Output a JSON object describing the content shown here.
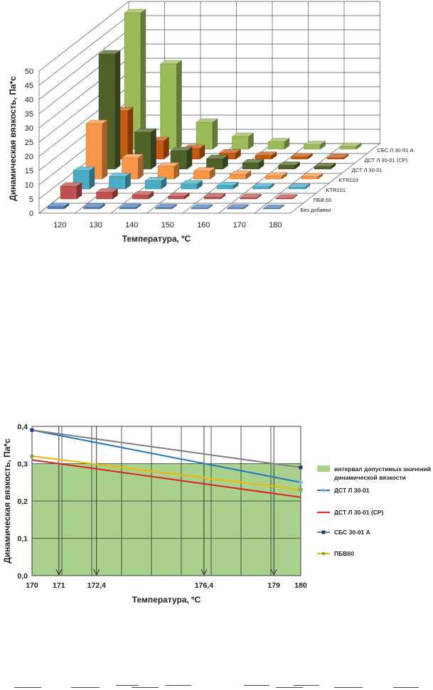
{
  "chart_data": [
    {
      "type": "bar",
      "subtype": "3d-bar",
      "title": "",
      "xlabel": "Температура, ºС",
      "ylabel": "Динамическая вязкость, Па*с",
      "ylim": [
        0,
        50
      ],
      "yticks": [
        "0",
        "5",
        "10",
        "15",
        "20",
        "25",
        "30",
        "35",
        "40",
        "45",
        "50"
      ],
      "categories": [
        "120",
        "130",
        "140",
        "150",
        "160",
        "170",
        "180"
      ],
      "series": [
        {
          "name": "Без добавки",
          "color": "#4f81bd",
          "values": [
            0.8,
            0.6,
            0.5,
            0.4,
            0.3,
            0.3,
            0.2
          ]
        },
        {
          "name": "ПБВ 60",
          "color": "#c0504d",
          "values": [
            4.5,
            2.4,
            1.4,
            0.9,
            0.6,
            0.4,
            0.3
          ]
        },
        {
          "name": "KTR101",
          "color": "#4bacc6",
          "values": [
            6.5,
            4.4,
            2.9,
            1.8,
            1.2,
            0.8,
            0.6
          ]
        },
        {
          "name": "KTR103",
          "color": "#f79646",
          "values": [
            19.5,
            7.5,
            4.5,
            2.8,
            1.7,
            1.1,
            0.8
          ]
        },
        {
          "name": "ДСТ Л 30-01",
          "color": "#4f6228",
          "values": [
            40.5,
            13.0,
            6.5,
            3.7,
            2.2,
            1.3,
            0.9
          ]
        },
        {
          "name": "ДСТ Л 30-01 (СР)",
          "color": "#c55a11",
          "values": [
            17.0,
            6.5,
            3.8,
            2.2,
            1.3,
            0.8,
            0.5
          ]
        },
        {
          "name": "СБС Л 30-01 А",
          "color": "#9bbb59",
          "values": [
            48.0,
            30.0,
            9.5,
            4.5,
            2.6,
            1.6,
            1.0
          ]
        }
      ],
      "legend_placement": "right (as depth labels)"
    },
    {
      "type": "line",
      "title": "",
      "xlabel": "Температура, ºС",
      "ylabel": "Динамическая вязкость, Па*с",
      "xlim": [
        170,
        180
      ],
      "ylim": [
        0,
        0.4
      ],
      "xticks": [
        "170",
        "171",
        "172,4",
        "176,4",
        "179",
        "180"
      ],
      "yticks": [
        "0,0",
        "0,1",
        "0,2",
        "0,3",
        "0,4"
      ],
      "band": {
        "name": "интервал допустимых значений динамической вязкости",
        "from": 0,
        "to": 0.3,
        "color": "#a9d18e"
      },
      "arrows_at": [
        171,
        172.4,
        176.4,
        179
      ],
      "series": [
        {
          "name": "ДСТ Л 30-01",
          "color": "#1f77bf",
          "marker": "diamond",
          "marker_color": "#8ea9db",
          "x": [
            170,
            180
          ],
          "y": [
            0.39,
            0.25
          ]
        },
        {
          "name": "ДСТ Л 30-01 (СР)",
          "color": "#e02020",
          "marker": "none",
          "x": [
            170,
            180
          ],
          "y": [
            0.31,
            0.21
          ]
        },
        {
          "name": "СБС 30-01 А",
          "color": "#7f7f7f",
          "marker": "square",
          "marker_color": "#1f3d7a",
          "x": [
            170,
            180
          ],
          "y": [
            0.39,
            0.29
          ]
        },
        {
          "name": "ПБВ60",
          "color": "#f2b700",
          "marker": "circle",
          "marker_color": "#70ad47",
          "x": [
            170,
            180
          ],
          "y": [
            0.32,
            0.23
          ]
        }
      ],
      "legend_placement": "right"
    }
  ]
}
